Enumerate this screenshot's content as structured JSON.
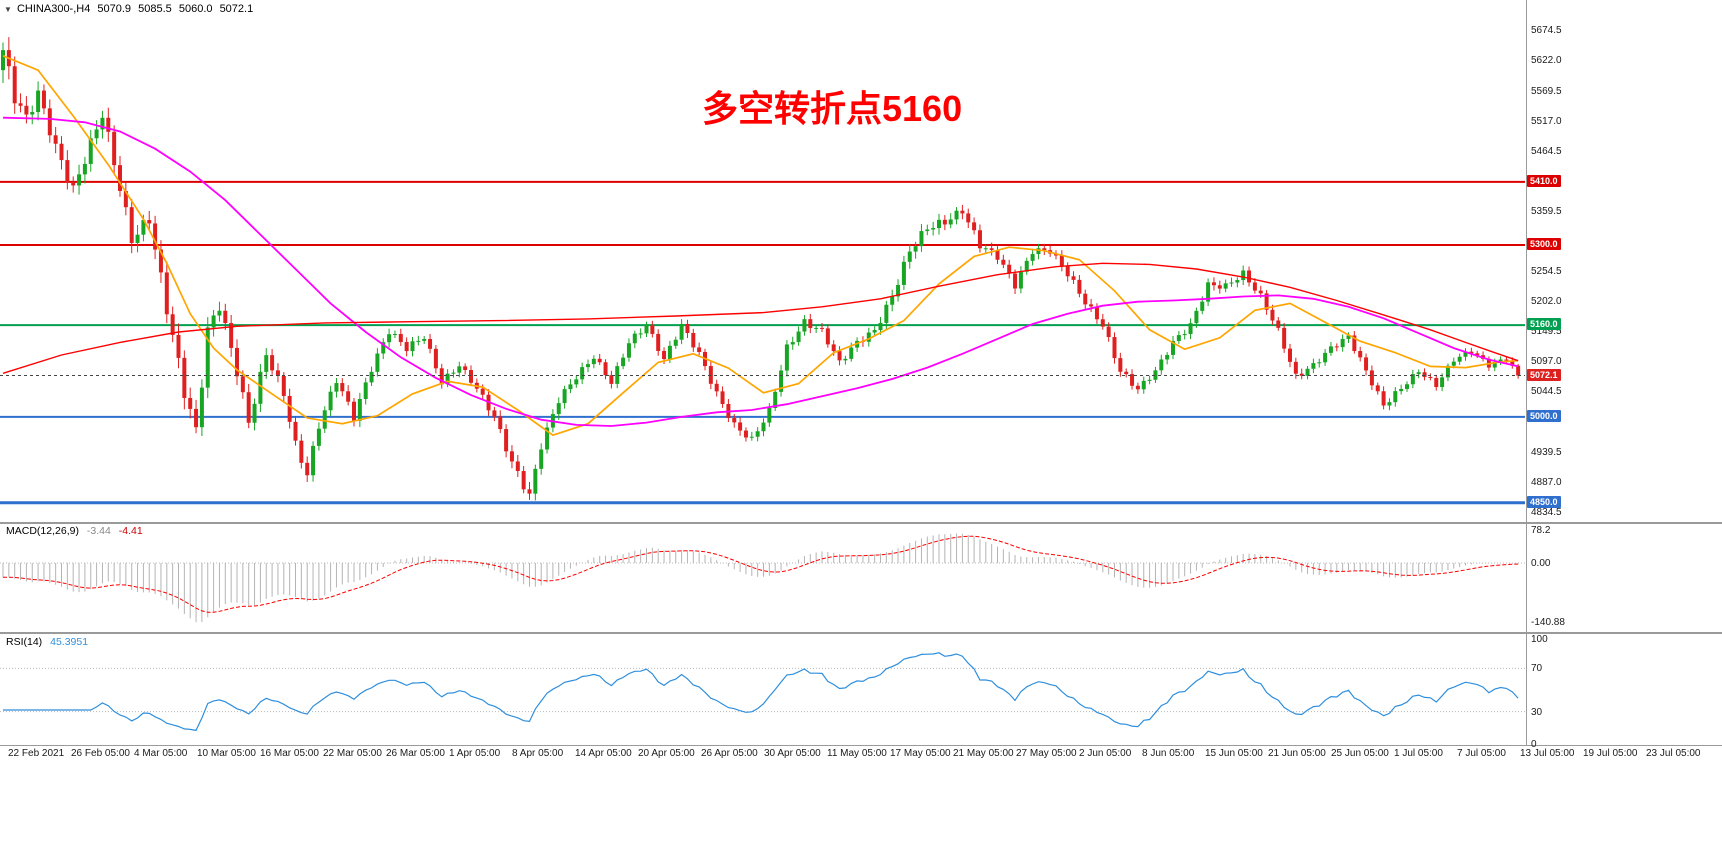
{
  "window": {
    "symbol": "CHINA300-,H4",
    "open": "5070.9",
    "high": "5085.5",
    "low": "5060.0",
    "close": "5072.1"
  },
  "icons": {
    "dropdown": "▼"
  },
  "annotation": {
    "text": "多空转折点5160",
    "color": "#ff0000"
  },
  "panels": {
    "macd": {
      "label": "MACD(12,26,9)",
      "main": "-3.44",
      "signal": "-4.41"
    },
    "rsi": {
      "label": "RSI(14)",
      "value": "45.3951"
    }
  },
  "colors": {
    "candle_up": "#18a524",
    "candle_down": "#e02020",
    "ma_fast": "#ffa500",
    "ma_medium": "#ff00ff",
    "ma_slow": "#ff0000",
    "macd_hist": "#b4b4b4",
    "macd_signal": "#ff0000",
    "rsi_line": "#2f8fdd",
    "current_badge": "#dd2020",
    "current_line": "#444444",
    "separator": "#9a9a9a",
    "grid_dotted": "#b8b8b8"
  },
  "chart_data": {
    "type": "candlestick",
    "symbol": "CHINA300-",
    "timeframe": "H4",
    "ohlc_display": [
      5070.9,
      5085.5,
      5060.0,
      5072.1
    ],
    "current_price": 5072.1,
    "y_range": [
      4820,
      5710
    ],
    "y_ticks": [
      "5674.5",
      "5622.0",
      "5569.5",
      "5517.0",
      "5464.5",
      "5359.5",
      "5254.5",
      "5202.0",
      "5149.5",
      "5097.0",
      "5044.5",
      "4939.5",
      "4887.0",
      "4834.5"
    ],
    "x_labels": [
      "22 Feb 2021",
      "26 Feb 05:00",
      "4 Mar 05:00",
      "10 Mar 05:00",
      "16 Mar 05:00",
      "22 Mar 05:00",
      "26 Mar 05:00",
      "1 Apr 05:00",
      "8 Apr 05:00",
      "14 Apr 05:00",
      "20 Apr 05:00",
      "26 Apr 05:00",
      "30 Apr 05:00",
      "11 May 05:00",
      "17 May 05:00",
      "21 May 05:00",
      "27 May 05:00",
      "2 Jun 05:00",
      "8 Jun 05:00",
      "15 Jun 05:00",
      "21 Jun 05:00",
      "25 Jun 05:00",
      "1 Jul 05:00",
      "7 Jul 05:00",
      "13 Jul 05:00",
      "19 Jul 05:00",
      "23 Jul 05:00"
    ],
    "hlines": [
      {
        "value": 5410.0,
        "label": "5410.0",
        "color": "#dd0000",
        "width": 2
      },
      {
        "value": 5300.0,
        "label": "5300.0",
        "color": "#dd0000",
        "width": 2
      },
      {
        "value": 5160.0,
        "label": "5160.0",
        "color": "#00a050",
        "width": 2
      },
      {
        "value": 5000.0,
        "label": "5000.0",
        "color": "#2f6fce",
        "width": 2
      },
      {
        "value": 4850.0,
        "label": "4850.0",
        "color": "#2f6fce",
        "width": 3
      }
    ],
    "candle_count": 260,
    "close_anchors": [
      [
        0,
        5640,
        60
      ],
      [
        2,
        5560,
        55
      ],
      [
        4,
        5520,
        45
      ],
      [
        6,
        5565,
        40
      ],
      [
        9,
        5470,
        42
      ],
      [
        12,
        5395,
        45
      ],
      [
        14,
        5450,
        40
      ],
      [
        17,
        5530,
        45
      ],
      [
        20,
        5400,
        42
      ],
      [
        22,
        5310,
        45
      ],
      [
        25,
        5345,
        40
      ],
      [
        28,
        5190,
        50
      ],
      [
        31,
        5045,
        50
      ],
      [
        33,
        4975,
        46
      ],
      [
        35,
        5150,
        46
      ],
      [
        37,
        5195,
        40
      ],
      [
        40,
        5080,
        40
      ],
      [
        42,
        4990,
        36
      ],
      [
        45,
        5110,
        36
      ],
      [
        48,
        5040,
        30
      ],
      [
        50,
        4950,
        34
      ],
      [
        52,
        4900,
        30
      ],
      [
        54,
        4985,
        28
      ],
      [
        57,
        5065,
        26
      ],
      [
        60,
        5000,
        28
      ],
      [
        63,
        5085,
        26
      ],
      [
        66,
        5150,
        24
      ],
      [
        69,
        5120,
        24
      ],
      [
        72,
        5140,
        22
      ],
      [
        75,
        5060,
        22
      ],
      [
        78,
        5090,
        20
      ],
      [
        81,
        5050,
        22
      ],
      [
        84,
        5000,
        26
      ],
      [
        87,
        4920,
        30
      ],
      [
        90,
        4862,
        32
      ],
      [
        92,
        4950,
        28
      ],
      [
        95,
        5030,
        26
      ],
      [
        98,
        5070,
        22
      ],
      [
        101,
        5105,
        22
      ],
      [
        104,
        5060,
        20
      ],
      [
        107,
        5130,
        22
      ],
      [
        110,
        5160,
        22
      ],
      [
        113,
        5100,
        22
      ],
      [
        116,
        5160,
        22
      ],
      [
        119,
        5110,
        22
      ],
      [
        122,
        5040,
        24
      ],
      [
        125,
        4985,
        24
      ],
      [
        128,
        4960,
        22
      ],
      [
        131,
        5010,
        22
      ],
      [
        134,
        5120,
        26
      ],
      [
        137,
        5165,
        24
      ],
      [
        140,
        5150,
        22
      ],
      [
        143,
        5095,
        22
      ],
      [
        146,
        5130,
        22
      ],
      [
        149,
        5150,
        24
      ],
      [
        152,
        5210,
        30
      ],
      [
        155,
        5290,
        32
      ],
      [
        158,
        5330,
        30
      ],
      [
        161,
        5340,
        28
      ],
      [
        164,
        5360,
        26
      ],
      [
        167,
        5300,
        26
      ],
      [
        170,
        5280,
        24
      ],
      [
        173,
        5230,
        24
      ],
      [
        176,
        5290,
        24
      ],
      [
        179,
        5290,
        22
      ],
      [
        182,
        5250,
        24
      ],
      [
        185,
        5200,
        24
      ],
      [
        188,
        5160,
        24
      ],
      [
        191,
        5080,
        24
      ],
      [
        194,
        5048,
        20
      ],
      [
        197,
        5080,
        20
      ],
      [
        200,
        5130,
        22
      ],
      [
        203,
        5160,
        22
      ],
      [
        206,
        5230,
        24
      ],
      [
        209,
        5228,
        22
      ],
      [
        212,
        5250,
        22
      ],
      [
        215,
        5210,
        22
      ],
      [
        218,
        5150,
        22
      ],
      [
        221,
        5070,
        24
      ],
      [
        224,
        5090,
        20
      ],
      [
        227,
        5120,
        20
      ],
      [
        230,
        5140,
        20
      ],
      [
        233,
        5080,
        22
      ],
      [
        236,
        5020,
        22
      ],
      [
        239,
        5050,
        20
      ],
      [
        242,
        5080,
        18
      ],
      [
        245,
        5055,
        18
      ],
      [
        248,
        5100,
        18
      ],
      [
        251,
        5115,
        18
      ],
      [
        254,
        5090,
        16
      ],
      [
        257,
        5102,
        16
      ],
      [
        259,
        5072.1,
        14
      ]
    ],
    "ma_lines": [
      {
        "name": "MA-fast-orange",
        "color": "#ffa500",
        "width": 1.7,
        "anchors": [
          [
            0,
            5630
          ],
          [
            6,
            5605
          ],
          [
            12,
            5525
          ],
          [
            18,
            5440
          ],
          [
            24,
            5345
          ],
          [
            28,
            5268
          ],
          [
            32,
            5180
          ],
          [
            36,
            5120
          ],
          [
            40,
            5082
          ],
          [
            46,
            5040
          ],
          [
            52,
            4998
          ],
          [
            58,
            4988
          ],
          [
            64,
            5002
          ],
          [
            70,
            5040
          ],
          [
            76,
            5062
          ],
          [
            82,
            5052
          ],
          [
            88,
            5012
          ],
          [
            94,
            4968
          ],
          [
            100,
            4988
          ],
          [
            106,
            5042
          ],
          [
            112,
            5095
          ],
          [
            118,
            5110
          ],
          [
            124,
            5085
          ],
          [
            130,
            5042
          ],
          [
            136,
            5058
          ],
          [
            142,
            5112
          ],
          [
            148,
            5136
          ],
          [
            154,
            5168
          ],
          [
            160,
            5232
          ],
          [
            166,
            5280
          ],
          [
            172,
            5296
          ],
          [
            178,
            5290
          ],
          [
            184,
            5274
          ],
          [
            190,
            5220
          ],
          [
            196,
            5152
          ],
          [
            202,
            5118
          ],
          [
            208,
            5138
          ],
          [
            214,
            5186
          ],
          [
            220,
            5198
          ],
          [
            226,
            5165
          ],
          [
            232,
            5132
          ],
          [
            238,
            5112
          ],
          [
            244,
            5088
          ],
          [
            250,
            5086
          ],
          [
            256,
            5096
          ],
          [
            259,
            5098
          ]
        ]
      },
      {
        "name": "MA-medium-magenta",
        "color": "#ff00ff",
        "width": 1.8,
        "anchors": [
          [
            0,
            5522
          ],
          [
            8,
            5520
          ],
          [
            14,
            5514
          ],
          [
            20,
            5498
          ],
          [
            26,
            5468
          ],
          [
            32,
            5428
          ],
          [
            38,
            5378
          ],
          [
            44,
            5318
          ],
          [
            50,
            5258
          ],
          [
            56,
            5198
          ],
          [
            62,
            5148
          ],
          [
            68,
            5104
          ],
          [
            74,
            5068
          ],
          [
            80,
            5038
          ],
          [
            86,
            5014
          ],
          [
            92,
            4995
          ],
          [
            98,
            4986
          ],
          [
            104,
            4984
          ],
          [
            110,
            4990
          ],
          [
            116,
            5000
          ],
          [
            122,
            5008
          ],
          [
            128,
            5012
          ],
          [
            134,
            5022
          ],
          [
            140,
            5036
          ],
          [
            146,
            5050
          ],
          [
            152,
            5066
          ],
          [
            158,
            5086
          ],
          [
            164,
            5110
          ],
          [
            170,
            5136
          ],
          [
            176,
            5162
          ],
          [
            182,
            5180
          ],
          [
            188,
            5194
          ],
          [
            194,
            5201
          ],
          [
            200,
            5203
          ],
          [
            206,
            5206
          ],
          [
            212,
            5210
          ],
          [
            218,
            5212
          ],
          [
            224,
            5206
          ],
          [
            230,
            5192
          ],
          [
            236,
            5172
          ],
          [
            242,
            5146
          ],
          [
            248,
            5120
          ],
          [
            254,
            5100
          ],
          [
            259,
            5088
          ]
        ]
      },
      {
        "name": "MA-slow-red",
        "color": "#ff0000",
        "width": 1.4,
        "anchors": [
          [
            0,
            5076
          ],
          [
            10,
            5108
          ],
          [
            20,
            5130
          ],
          [
            30,
            5148
          ],
          [
            40,
            5158
          ],
          [
            55,
            5164
          ],
          [
            70,
            5166
          ],
          [
            85,
            5168
          ],
          [
            100,
            5171
          ],
          [
            115,
            5176
          ],
          [
            130,
            5182
          ],
          [
            140,
            5192
          ],
          [
            150,
            5206
          ],
          [
            160,
            5228
          ],
          [
            170,
            5248
          ],
          [
            180,
            5262
          ],
          [
            188,
            5268
          ],
          [
            196,
            5266
          ],
          [
            204,
            5258
          ],
          [
            212,
            5244
          ],
          [
            220,
            5226
          ],
          [
            228,
            5203
          ],
          [
            236,
            5178
          ],
          [
            244,
            5152
          ],
          [
            250,
            5130
          ],
          [
            255,
            5112
          ],
          [
            259,
            5098
          ]
        ]
      }
    ],
    "macd": {
      "params": [
        12,
        26,
        9
      ],
      "display_main": -3.44,
      "display_signal": -4.41,
      "axis_ticks": [
        "78.2",
        "0.00",
        "-140.88"
      ],
      "min_display": -140.88
    },
    "rsi": {
      "period": 14,
      "value": 45.3951,
      "axis_ticks": [
        "100",
        "70",
        "30",
        "0"
      ],
      "levels": [
        70,
        30
      ]
    }
  }
}
